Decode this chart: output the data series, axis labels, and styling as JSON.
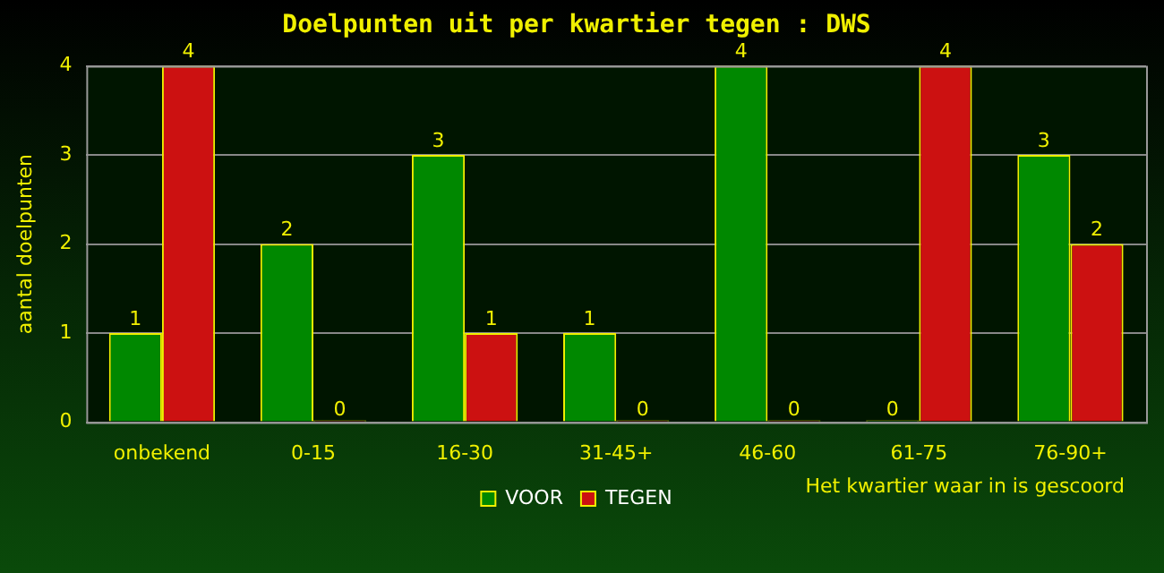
{
  "chart_data": {
    "type": "bar",
    "title": "Doelpunten uit per kwartier tegen : DWS",
    "xlabel": "Het kwartier waar in is gescoord",
    "ylabel": "aantal doelpunten",
    "categories": [
      "onbekend",
      "0-15",
      "16-30",
      "31-45+",
      "46-60",
      "61-75",
      "76-90+"
    ],
    "series": [
      {
        "name": "VOOR",
        "color": "#008800",
        "values": [
          1,
          2,
          3,
          1,
          4,
          0,
          3
        ]
      },
      {
        "name": "TEGEN",
        "color": "#cc1111",
        "values": [
          4,
          0,
          1,
          0,
          0,
          4,
          2
        ]
      }
    ],
    "ylim": [
      0,
      4
    ],
    "yticks": [
      0,
      1,
      2,
      3,
      4
    ],
    "grid": "y",
    "legend": "bottom",
    "data_labels": true
  }
}
